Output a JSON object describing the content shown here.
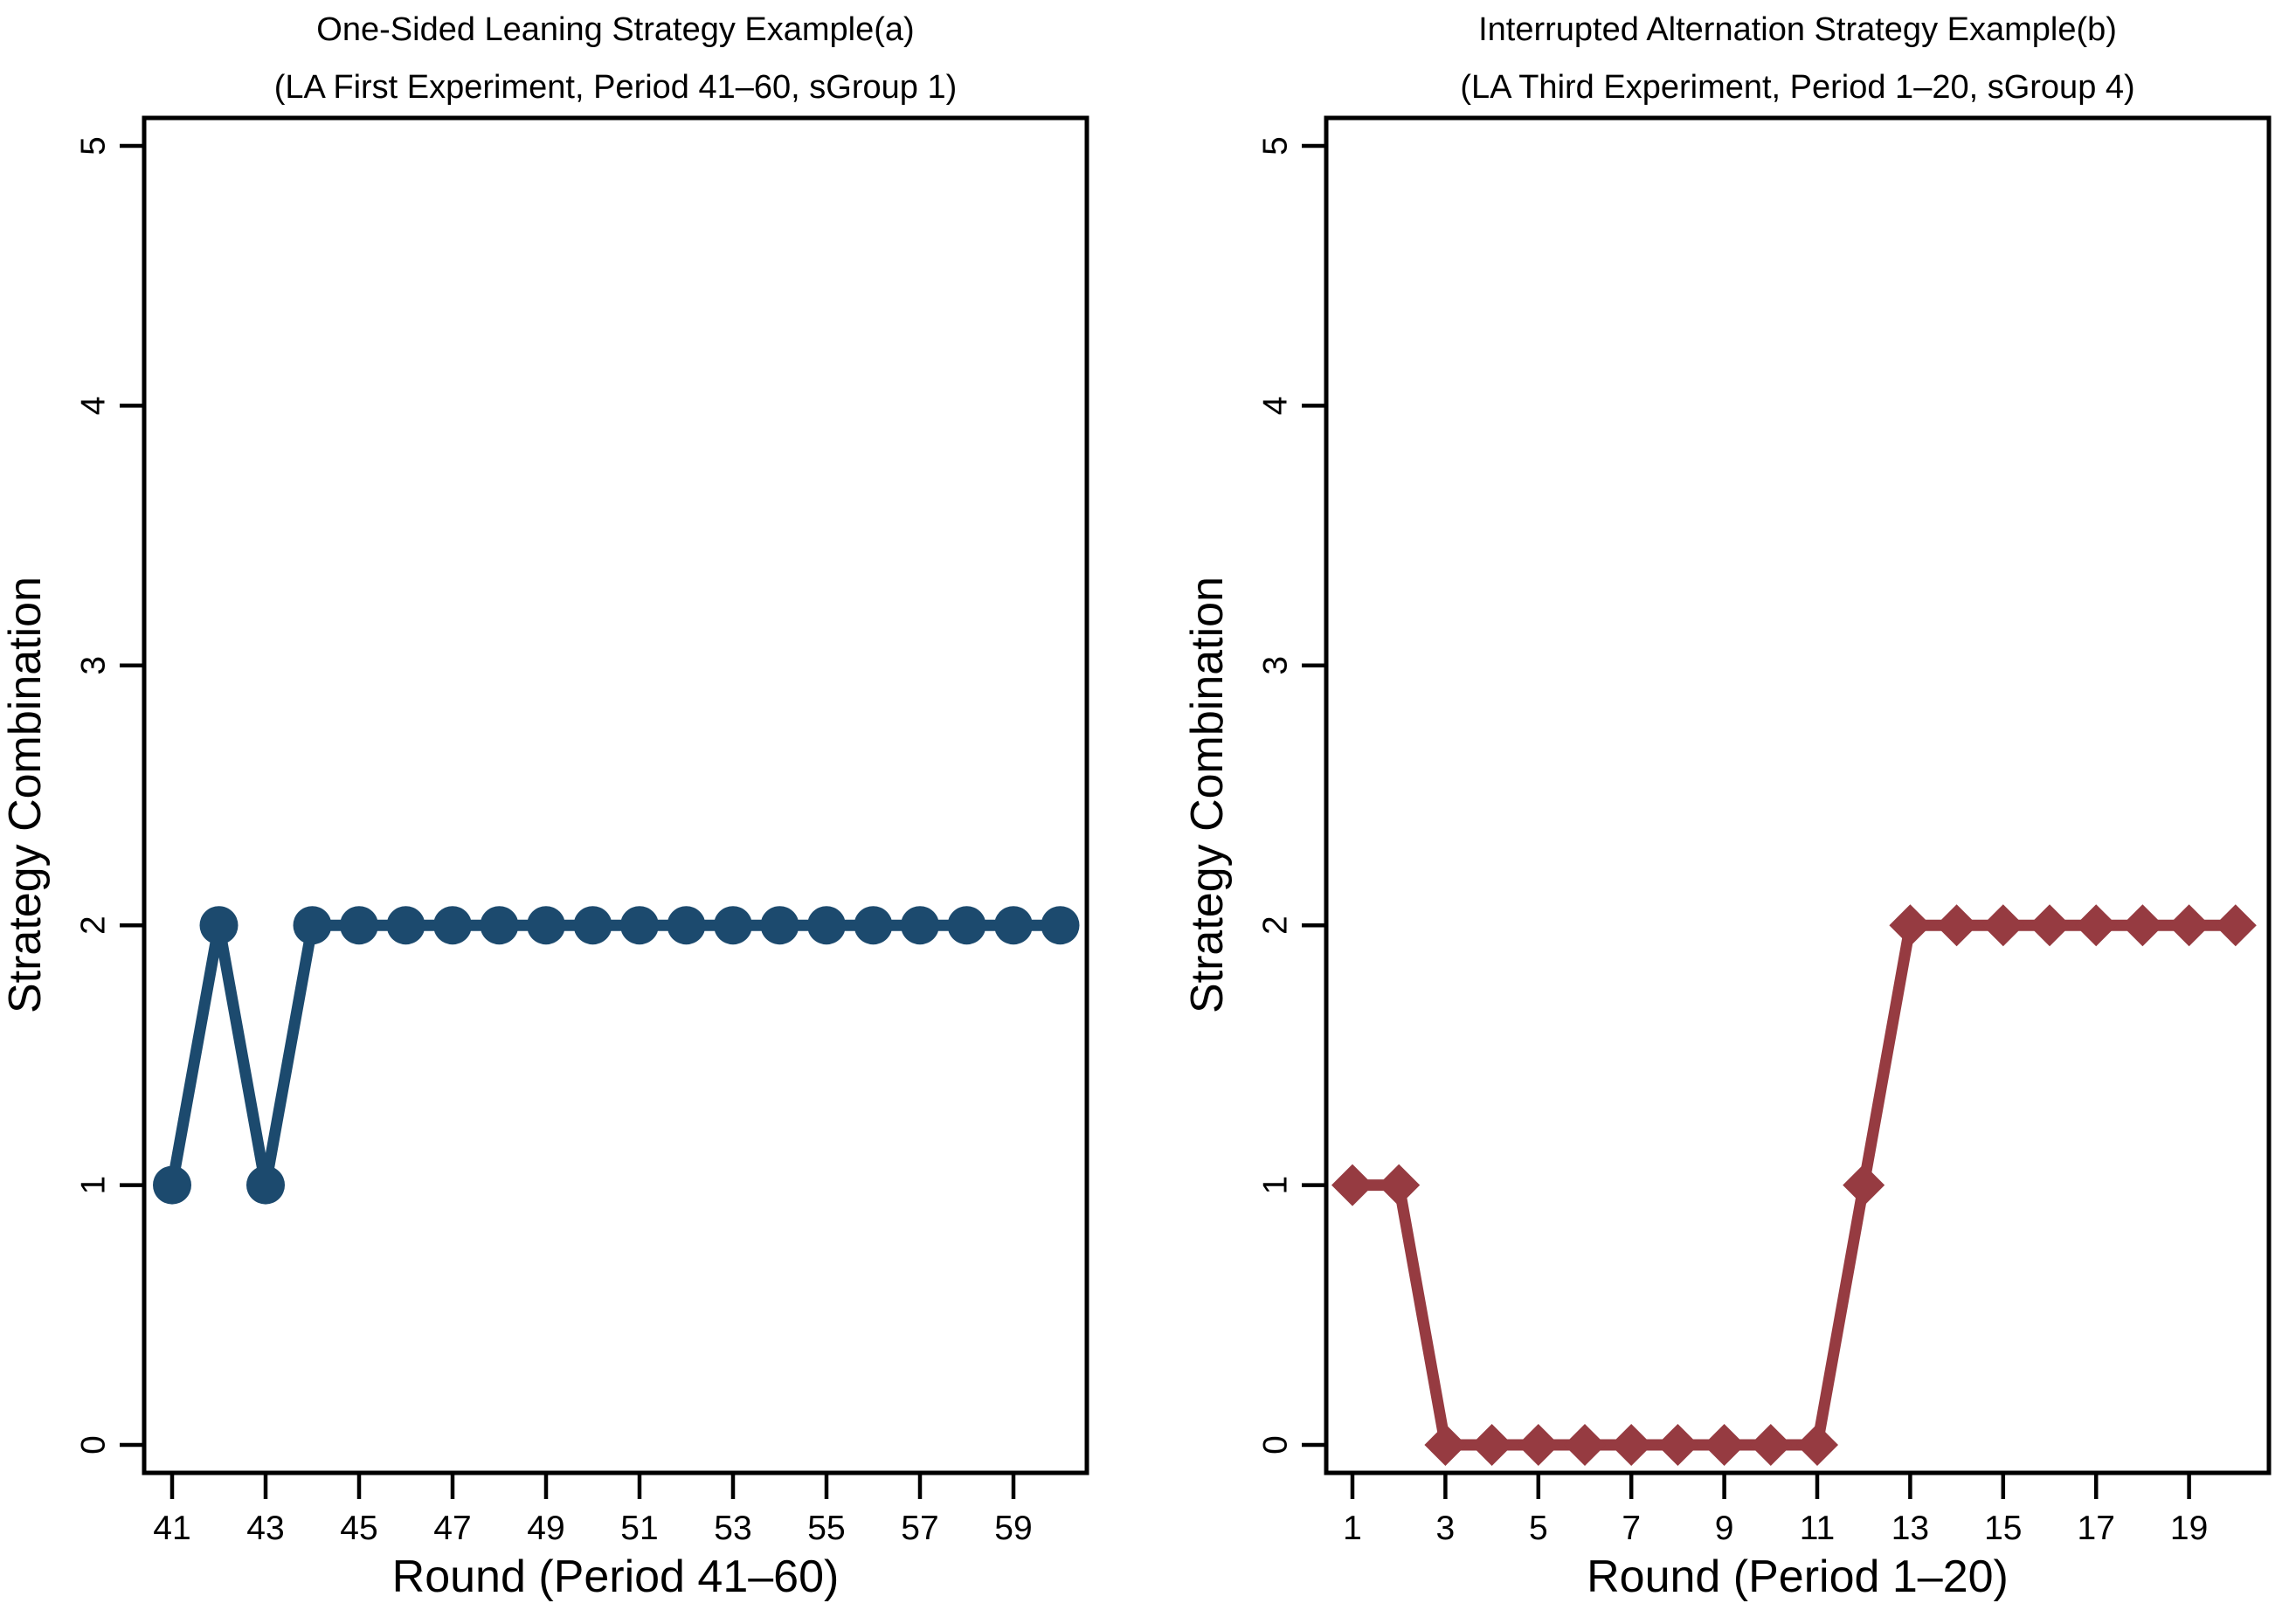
{
  "figure": {
    "background": "#FFFFFF",
    "text_color": "#000000",
    "panel_count": 2
  },
  "chart_data": [
    {
      "type": "line",
      "panel": "a",
      "title": "One-Sided Leaning Strategy Example(a)",
      "subtitle": "(LA First Experiment, Period 41–60, sGroup 1)",
      "xlabel": "Round (Period 41–60)",
      "ylabel": "Strategy Combination",
      "marker": "circle",
      "color": "#1C4A6E",
      "x": [
        41,
        42,
        43,
        44,
        45,
        46,
        47,
        48,
        49,
        50,
        51,
        52,
        53,
        54,
        55,
        56,
        57,
        58,
        59,
        60
      ],
      "y": [
        1,
        2,
        1,
        2,
        2,
        2,
        2,
        2,
        2,
        2,
        2,
        2,
        2,
        2,
        2,
        2,
        2,
        2,
        2,
        2
      ],
      "xticks": [
        41,
        43,
        45,
        47,
        49,
        51,
        53,
        55,
        57,
        59
      ],
      "yticks": [
        0,
        1,
        2,
        3,
        4,
        5
      ],
      "xlim": [
        41,
        60
      ],
      "ylim": [
        0,
        5
      ],
      "grid": false,
      "legend": "none"
    },
    {
      "type": "line",
      "panel": "b",
      "title": "Interrupted Alternation Strategy Example(b)",
      "subtitle": "(LA Third Experiment, Period 1–20, sGroup 4)",
      "xlabel": "Round (Period 1–20)",
      "ylabel": "Strategy Combination",
      "marker": "diamond",
      "color": "#963B41",
      "x": [
        1,
        2,
        3,
        4,
        5,
        6,
        7,
        8,
        9,
        10,
        11,
        12,
        13,
        14,
        15,
        16,
        17,
        18,
        19,
        20
      ],
      "y": [
        1,
        1,
        0,
        0,
        0,
        0,
        0,
        0,
        0,
        0,
        0,
        1,
        2,
        2,
        2,
        2,
        2,
        2,
        2,
        2
      ],
      "xticks": [
        1,
        3,
        5,
        7,
        9,
        11,
        13,
        15,
        17,
        19
      ],
      "yticks": [
        0,
        1,
        2,
        3,
        4,
        5
      ],
      "xlim": [
        1,
        20
      ],
      "ylim": [
        0,
        5
      ],
      "grid": false,
      "legend": "none"
    }
  ]
}
